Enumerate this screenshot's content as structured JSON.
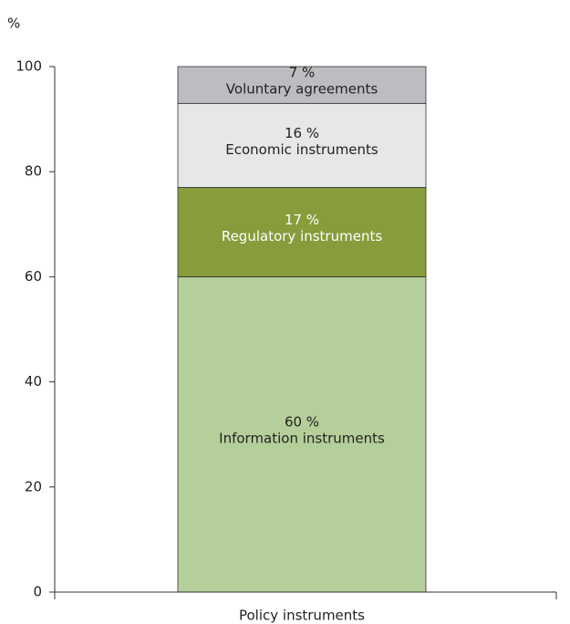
{
  "chart_data": {
    "type": "stacked_bar",
    "y_label": "%",
    "categories": [
      "Policy instruments"
    ],
    "series": [
      {
        "name": "Information instruments",
        "color": "#b5cf9a",
        "label_color": "#222222",
        "values": [
          60
        ],
        "value_labels": [
          "60 %"
        ]
      },
      {
        "name": "Regulatory instruments",
        "color": "#879c3a",
        "label_color": "#ffffff",
        "values": [
          17
        ],
        "value_labels": [
          "17 %"
        ]
      },
      {
        "name": "Economic instruments",
        "color": "#e6e7e9",
        "label_color": "#222222",
        "values": [
          16
        ],
        "value_labels": [
          "16 %"
        ]
      },
      {
        "name": "Voluntary agreements",
        "color": "#bcbdc1",
        "label_color": "#222222",
        "values": [
          7
        ],
        "value_labels": [
          "7 %"
        ]
      }
    ],
    "ylim": [
      0,
      100
    ],
    "yticks": [
      0,
      20,
      40,
      60,
      80,
      100
    ]
  }
}
